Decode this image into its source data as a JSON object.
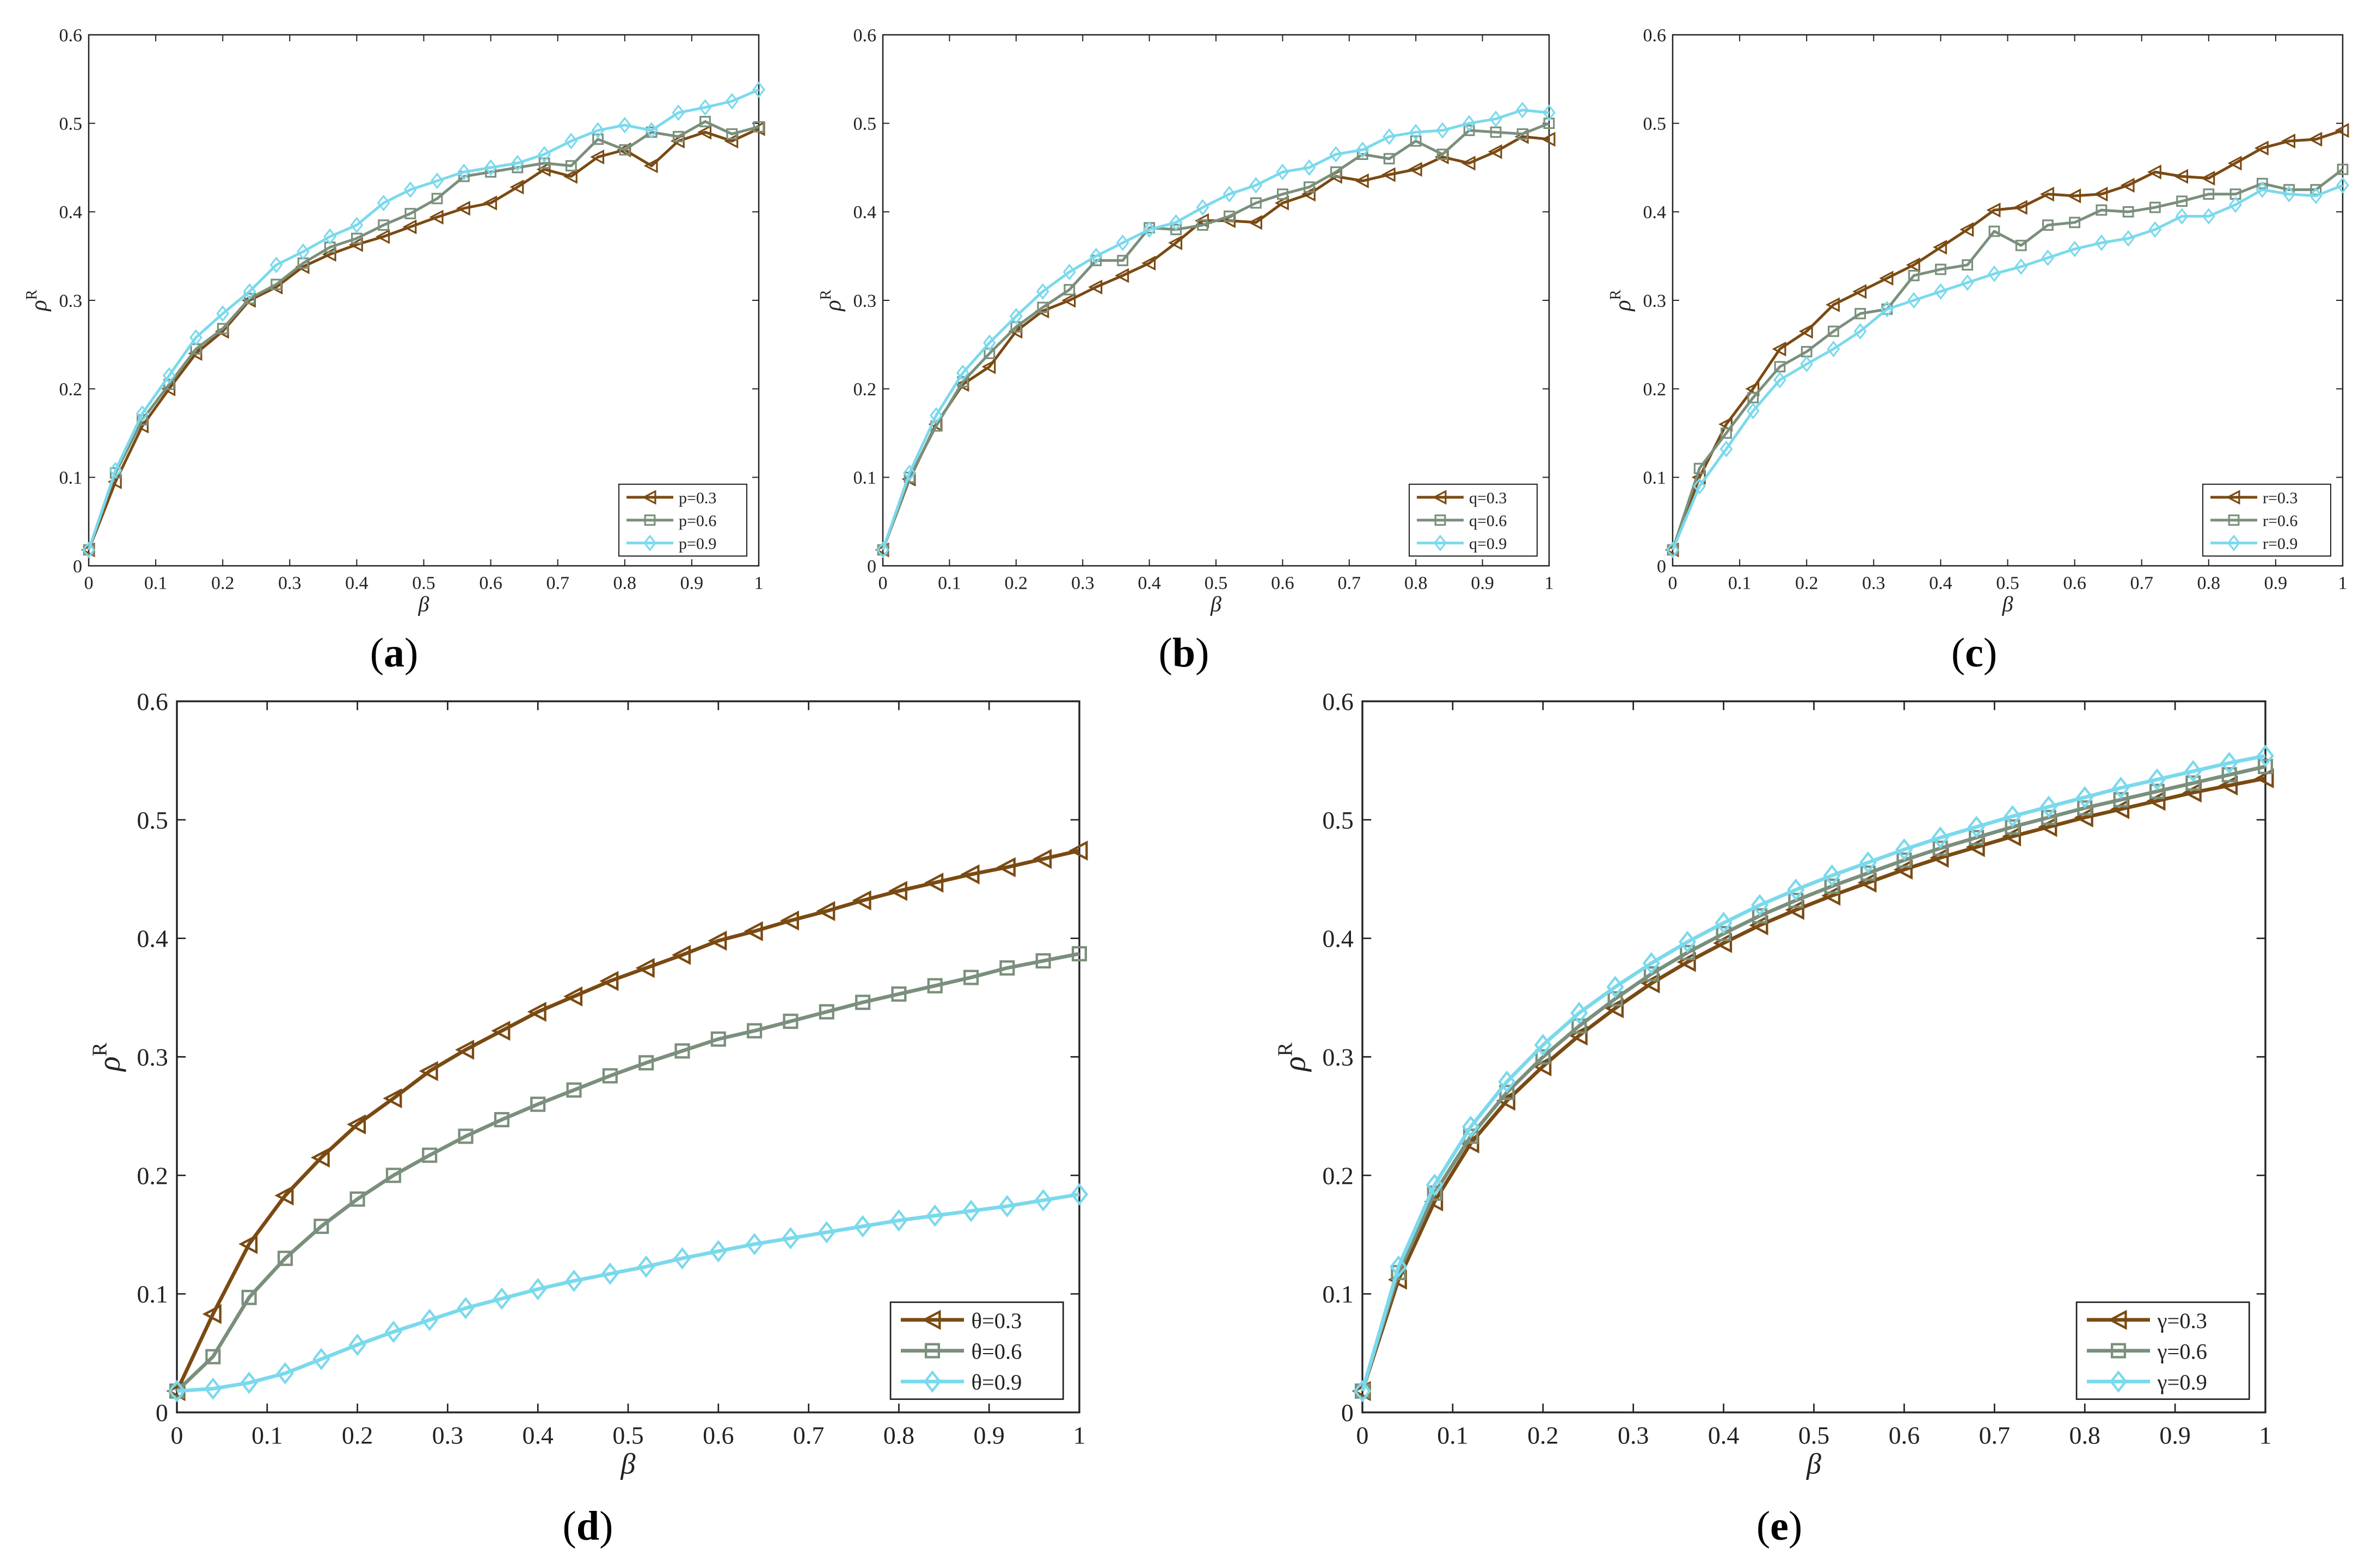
{
  "chart_data": [
    {
      "id": "a",
      "type": "line",
      "caption_letter": "a",
      "xlabel": "β",
      "ylabel_base": "ρ",
      "ylabel_sup": "R",
      "xlim": [
        0,
        1
      ],
      "ylim": [
        0,
        0.6
      ],
      "x_ticks": [
        "0",
        "0.1",
        "0.2",
        "0.3",
        "0.4",
        "0.5",
        "0.6",
        "0.7",
        "0.8",
        "0.9",
        "1"
      ],
      "y_ticks": [
        "0",
        "0.1",
        "0.2",
        "0.3",
        "0.4",
        "0.5",
        "0.6"
      ],
      "legend_position": "bottom-right",
      "x": [
        0,
        0.04,
        0.08,
        0.12,
        0.16,
        0.2,
        0.24,
        0.28,
        0.32,
        0.36,
        0.4,
        0.44,
        0.48,
        0.52,
        0.56,
        0.6,
        0.64,
        0.68,
        0.72,
        0.76,
        0.8,
        0.84,
        0.88,
        0.92,
        0.96,
        1
      ],
      "series": [
        {
          "name": "p=0.3",
          "values": [
            0.018,
            0.095,
            0.158,
            0.2,
            0.24,
            0.265,
            0.3,
            0.315,
            0.338,
            0.352,
            0.363,
            0.372,
            0.383,
            0.394,
            0.404,
            0.41,
            0.428,
            0.448,
            0.44,
            0.462,
            0.47,
            0.452,
            0.48,
            0.49,
            0.48,
            0.494
          ]
        },
        {
          "name": "p=0.6",
          "values": [
            0.018,
            0.105,
            0.165,
            0.205,
            0.245,
            0.268,
            0.302,
            0.318,
            0.342,
            0.36,
            0.37,
            0.385,
            0.398,
            0.415,
            0.44,
            0.445,
            0.45,
            0.455,
            0.452,
            0.482,
            0.47,
            0.49,
            0.485,
            0.502,
            0.488,
            0.496
          ]
        },
        {
          "name": "p=0.9",
          "values": [
            0.018,
            0.108,
            0.172,
            0.215,
            0.258,
            0.285,
            0.31,
            0.34,
            0.355,
            0.372,
            0.385,
            0.41,
            0.425,
            0.435,
            0.445,
            0.45,
            0.455,
            0.465,
            0.48,
            0.492,
            0.498,
            0.492,
            0.512,
            0.518,
            0.525,
            0.538
          ]
        }
      ]
    },
    {
      "id": "b",
      "type": "line",
      "caption_letter": "b",
      "xlabel": "β",
      "ylabel_base": "ρ",
      "ylabel_sup": "R",
      "xlim": [
        0,
        1
      ],
      "ylim": [
        0,
        0.6
      ],
      "x_ticks": [
        "0",
        "0.1",
        "0.2",
        "0.3",
        "0.4",
        "0.5",
        "0.6",
        "0.7",
        "0.8",
        "0.9",
        "1"
      ],
      "y_ticks": [
        "0",
        "0.1",
        "0.2",
        "0.3",
        "0.4",
        "0.5",
        "0.6"
      ],
      "legend_position": "bottom-right",
      "x": [
        0,
        0.04,
        0.08,
        0.12,
        0.16,
        0.2,
        0.24,
        0.28,
        0.32,
        0.36,
        0.4,
        0.44,
        0.48,
        0.52,
        0.56,
        0.6,
        0.64,
        0.68,
        0.72,
        0.76,
        0.8,
        0.84,
        0.88,
        0.92,
        0.96,
        1
      ],
      "series": [
        {
          "name": "q=0.3",
          "values": [
            0.018,
            0.098,
            0.16,
            0.205,
            0.225,
            0.265,
            0.288,
            0.3,
            0.315,
            0.328,
            0.342,
            0.365,
            0.39,
            0.39,
            0.388,
            0.41,
            0.42,
            0.44,
            0.435,
            0.442,
            0.448,
            0.462,
            0.455,
            0.468,
            0.485,
            0.482
          ]
        },
        {
          "name": "q=0.6",
          "values": [
            0.018,
            0.1,
            0.158,
            0.208,
            0.24,
            0.27,
            0.292,
            0.312,
            0.345,
            0.345,
            0.382,
            0.38,
            0.385,
            0.395,
            0.41,
            0.42,
            0.428,
            0.445,
            0.465,
            0.46,
            0.48,
            0.465,
            0.492,
            0.49,
            0.488,
            0.5
          ]
        },
        {
          "name": "q=0.9",
          "values": [
            0.018,
            0.105,
            0.17,
            0.218,
            0.252,
            0.282,
            0.31,
            0.332,
            0.35,
            0.365,
            0.38,
            0.388,
            0.405,
            0.42,
            0.43,
            0.445,
            0.45,
            0.465,
            0.47,
            0.485,
            0.49,
            0.492,
            0.5,
            0.505,
            0.515,
            0.512
          ]
        }
      ]
    },
    {
      "id": "c",
      "type": "line",
      "caption_letter": "c",
      "xlabel": "β",
      "ylabel_base": "ρ",
      "ylabel_sup": "R",
      "xlim": [
        0,
        1
      ],
      "ylim": [
        0,
        0.6
      ],
      "x_ticks": [
        "0",
        "0.1",
        "0.2",
        "0.3",
        "0.4",
        "0.5",
        "0.6",
        "0.7",
        "0.8",
        "0.9",
        "1"
      ],
      "y_ticks": [
        "0",
        "0.1",
        "0.2",
        "0.3",
        "0.4",
        "0.5",
        "0.6"
      ],
      "legend_position": "bottom-right",
      "x": [
        0,
        0.04,
        0.08,
        0.12,
        0.16,
        0.2,
        0.24,
        0.28,
        0.32,
        0.36,
        0.4,
        0.44,
        0.48,
        0.52,
        0.56,
        0.6,
        0.64,
        0.68,
        0.72,
        0.76,
        0.8,
        0.84,
        0.88,
        0.92,
        0.96,
        1
      ],
      "series": [
        {
          "name": "r=0.3",
          "values": [
            0.018,
            0.1,
            0.16,
            0.2,
            0.245,
            0.265,
            0.295,
            0.31,
            0.325,
            0.34,
            0.36,
            0.38,
            0.402,
            0.405,
            0.42,
            0.418,
            0.42,
            0.43,
            0.445,
            0.44,
            0.438,
            0.455,
            0.472,
            0.48,
            0.482,
            0.492
          ]
        },
        {
          "name": "r=0.6",
          "values": [
            0.018,
            0.11,
            0.15,
            0.19,
            0.225,
            0.242,
            0.265,
            0.285,
            0.29,
            0.328,
            0.335,
            0.34,
            0.378,
            0.362,
            0.385,
            0.388,
            0.402,
            0.4,
            0.405,
            0.412,
            0.42,
            0.42,
            0.432,
            0.425,
            0.425,
            0.448
          ]
        },
        {
          "name": "r=0.9",
          "values": [
            0.018,
            0.09,
            0.132,
            0.175,
            0.21,
            0.228,
            0.245,
            0.265,
            0.29,
            0.3,
            0.31,
            0.32,
            0.33,
            0.338,
            0.348,
            0.358,
            0.365,
            0.37,
            0.38,
            0.395,
            0.395,
            0.408,
            0.425,
            0.42,
            0.418,
            0.43
          ]
        }
      ]
    },
    {
      "id": "d",
      "type": "line",
      "caption_letter": "d",
      "xlabel": "β",
      "ylabel_base": "ρ",
      "ylabel_sup": "R",
      "xlim": [
        0,
        1
      ],
      "ylim": [
        0,
        0.6
      ],
      "x_ticks": [
        "0",
        "0.1",
        "0.2",
        "0.3",
        "0.4",
        "0.5",
        "0.6",
        "0.7",
        "0.8",
        "0.9",
        "1"
      ],
      "y_ticks": [
        "0",
        "0.1",
        "0.2",
        "0.3",
        "0.4",
        "0.5",
        "0.6"
      ],
      "legend_position": "bottom-right",
      "x": [
        0,
        0.04,
        0.08,
        0.12,
        0.16,
        0.2,
        0.24,
        0.28,
        0.32,
        0.36,
        0.4,
        0.44,
        0.48,
        0.52,
        0.56,
        0.6,
        0.64,
        0.68,
        0.72,
        0.76,
        0.8,
        0.84,
        0.88,
        0.92,
        0.96,
        1
      ],
      "series": [
        {
          "name": "θ=0.3",
          "values": [
            0.018,
            0.083,
            0.142,
            0.183,
            0.215,
            0.243,
            0.265,
            0.288,
            0.306,
            0.322,
            0.338,
            0.351,
            0.364,
            0.375,
            0.386,
            0.398,
            0.406,
            0.415,
            0.423,
            0.432,
            0.44,
            0.447,
            0.454,
            0.46,
            0.467,
            0.474
          ]
        },
        {
          "name": "θ=0.6",
          "values": [
            0.018,
            0.047,
            0.097,
            0.13,
            0.157,
            0.18,
            0.2,
            0.217,
            0.233,
            0.247,
            0.26,
            0.272,
            0.284,
            0.295,
            0.305,
            0.315,
            0.322,
            0.33,
            0.338,
            0.346,
            0.353,
            0.36,
            0.367,
            0.375,
            0.381,
            0.387
          ]
        },
        {
          "name": "θ=0.9",
          "values": [
            0.018,
            0.02,
            0.025,
            0.033,
            0.045,
            0.057,
            0.068,
            0.078,
            0.088,
            0.096,
            0.104,
            0.111,
            0.117,
            0.123,
            0.13,
            0.136,
            0.142,
            0.147,
            0.152,
            0.157,
            0.162,
            0.166,
            0.17,
            0.174,
            0.179,
            0.184
          ]
        }
      ]
    },
    {
      "id": "e",
      "type": "line",
      "caption_letter": "e",
      "xlabel": "β",
      "ylabel_base": "ρ",
      "ylabel_sup": "R",
      "xlim": [
        0,
        1
      ],
      "ylim": [
        0,
        0.6
      ],
      "x_ticks": [
        "0",
        "0.1",
        "0.2",
        "0.3",
        "0.4",
        "0.5",
        "0.6",
        "0.7",
        "0.8",
        "0.9",
        "1"
      ],
      "y_ticks": [
        "0",
        "0.1",
        "0.2",
        "0.3",
        "0.4",
        "0.5",
        "0.6"
      ],
      "legend_position": "bottom-right",
      "x": [
        0,
        0.04,
        0.08,
        0.12,
        0.16,
        0.2,
        0.24,
        0.28,
        0.32,
        0.36,
        0.4,
        0.44,
        0.48,
        0.52,
        0.56,
        0.6,
        0.64,
        0.68,
        0.72,
        0.76,
        0.8,
        0.84,
        0.88,
        0.92,
        0.96,
        1
      ],
      "series": [
        {
          "name": "γ=0.3",
          "values": [
            0.018,
            0.112,
            0.178,
            0.227,
            0.263,
            0.292,
            0.318,
            0.341,
            0.362,
            0.38,
            0.396,
            0.411,
            0.424,
            0.436,
            0.447,
            0.458,
            0.468,
            0.477,
            0.486,
            0.494,
            0.502,
            0.509,
            0.516,
            0.523,
            0.529,
            0.535
          ]
        },
        {
          "name": "γ=0.6",
          "values": [
            0.018,
            0.118,
            0.185,
            0.233,
            0.27,
            0.3,
            0.326,
            0.349,
            0.37,
            0.388,
            0.404,
            0.419,
            0.432,
            0.444,
            0.455,
            0.466,
            0.476,
            0.485,
            0.494,
            0.502,
            0.51,
            0.517,
            0.524,
            0.531,
            0.538,
            0.545
          ]
        },
        {
          "name": "γ=0.9",
          "values": [
            0.018,
            0.123,
            0.192,
            0.241,
            0.279,
            0.31,
            0.337,
            0.359,
            0.379,
            0.397,
            0.413,
            0.428,
            0.441,
            0.453,
            0.464,
            0.475,
            0.485,
            0.494,
            0.503,
            0.511,
            0.519,
            0.527,
            0.534,
            0.541,
            0.548,
            0.554
          ]
        }
      ]
    }
  ],
  "colors": {
    "series_1": "#7a4a12",
    "series_2": "#7a8f7c",
    "series_3": "#7ad9ec",
    "axis": "#222222",
    "tick_text": "#222222"
  }
}
